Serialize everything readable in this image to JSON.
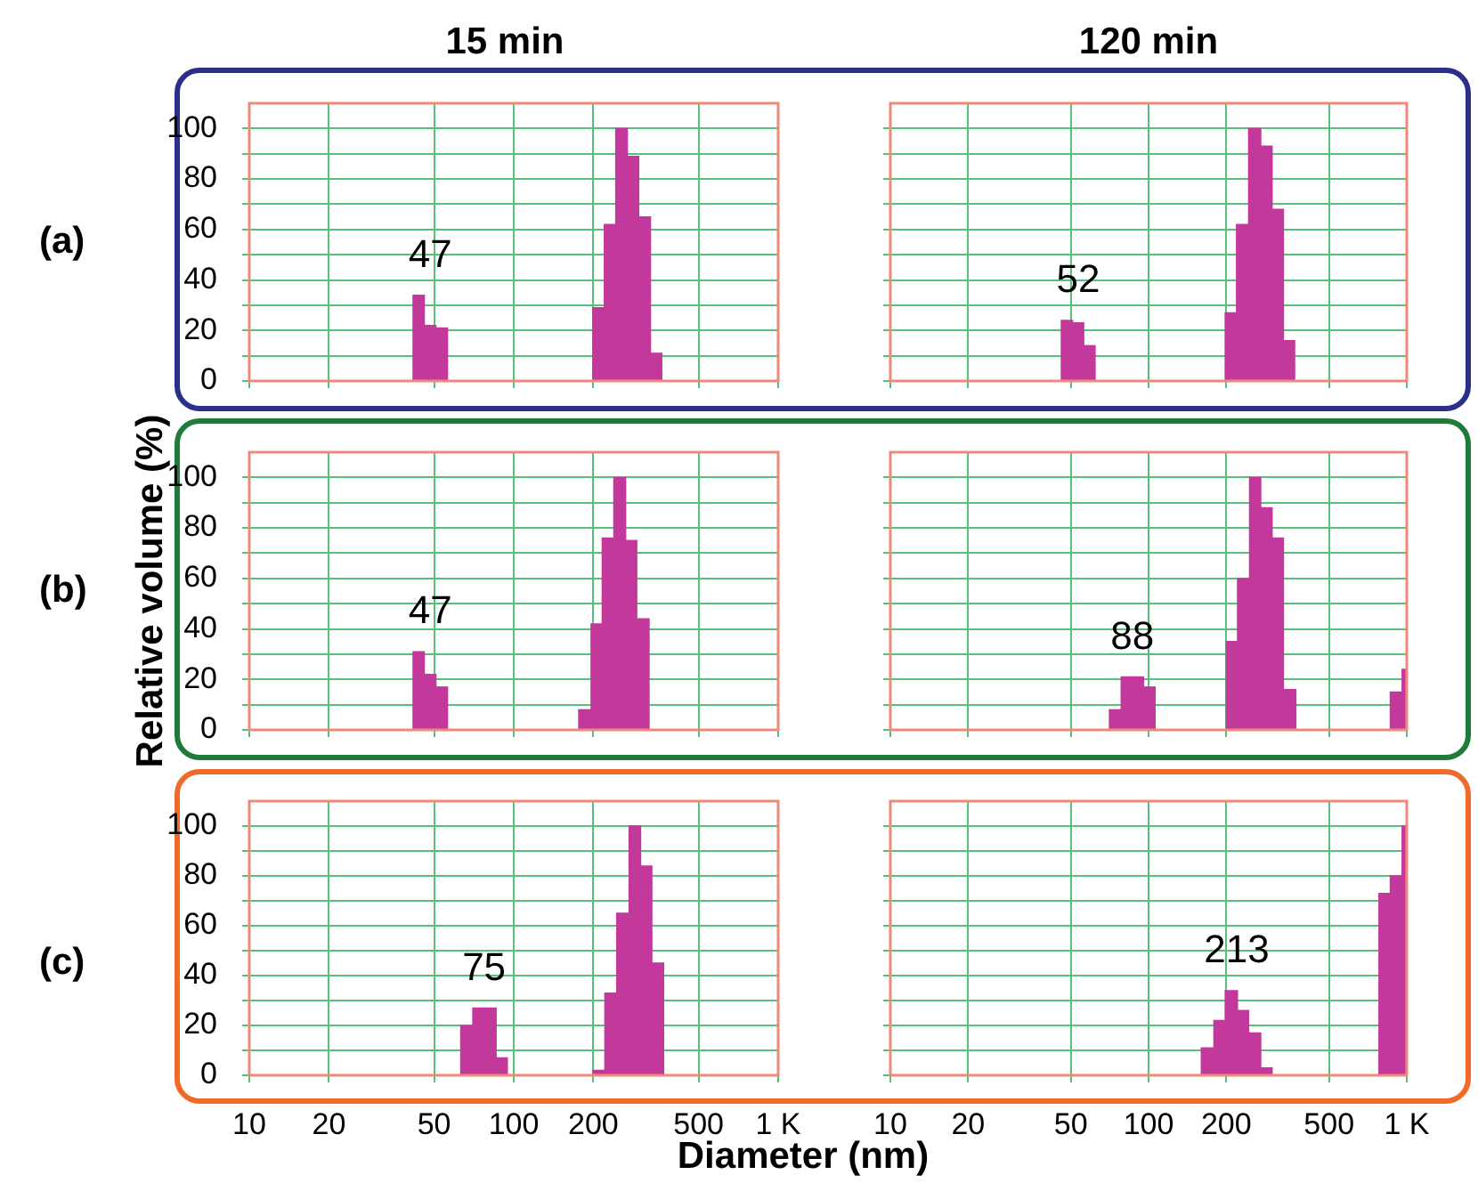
{
  "chart_data": [
    {
      "type": "histogram",
      "title": "15 min",
      "annotations": [
        "(a)",
        "47"
      ],
      "bins": [
        41.6,
        45.9,
        50.8,
        56.2,
        199,
        220,
        243,
        269,
        297,
        329,
        363
      ],
      "values": [
        34,
        22,
        21,
        null,
        29,
        62,
        100,
        89,
        65,
        11
      ],
      "color": "#c2399b",
      "xlim": [
        10,
        1000
      ],
      "xticks": [
        10,
        20,
        50,
        100,
        200,
        500,
        1000
      ],
      "ylim": [
        0,
        110
      ],
      "yticks": [
        0,
        {
          "value": 10,
          "label": null
        },
        20,
        {
          "value": 30,
          "label": null
        },
        40,
        {
          "value": 50,
          "label": null
        },
        60,
        {
          "value": 70,
          "label": null
        },
        80,
        {
          "value": 90,
          "label": null
        },
        100
      ],
      "log": "x",
      "grid": true,
      "tick_labels": "y"
    },
    {
      "type": "histogram",
      "title": "120 min",
      "annotations": [
        "52"
      ],
      "bins": [
        45.9,
        50.8,
        56.1,
        62.1,
        198,
        219,
        244,
        272,
        301,
        333,
        368
      ],
      "values": [
        24,
        23,
        14,
        null,
        27,
        62,
        100,
        93,
        68,
        16
      ],
      "color": "#c2399b",
      "xlim": [
        10,
        1000
      ],
      "xticks": [
        10,
        20,
        50,
        100,
        200,
        500,
        1000
      ],
      "ylim": [
        0,
        110
      ],
      "yticks": [
        0,
        {
          "value": 10,
          "label": null
        },
        20,
        {
          "value": 30,
          "label": null
        },
        40,
        {
          "value": 50,
          "label": null
        },
        60,
        {
          "value": 70,
          "label": null
        },
        80,
        {
          "value": 90,
          "label": null
        },
        100
      ],
      "log": "x",
      "grid": true,
      "tick_labels": false
    },
    {
      "type": "histogram",
      "ylabel": "Relative volume (%)",
      "annotations": [
        "(b)",
        "47"
      ],
      "bins": [
        41.6,
        45.9,
        50.8,
        56.2,
        176,
        196,
        216,
        239,
        265,
        292,
        325
      ],
      "values": [
        31,
        22,
        17,
        null,
        8,
        42,
        76,
        100,
        75,
        44
      ],
      "color": "#c2399b",
      "xlim": [
        10,
        1000
      ],
      "xticks": [
        10,
        20,
        50,
        100,
        200,
        500,
        1000
      ],
      "ylim": [
        0,
        110
      ],
      "yticks": [
        0,
        {
          "value": 10,
          "label": null
        },
        20,
        {
          "value": 30,
          "label": null
        },
        40,
        {
          "value": 50,
          "label": null
        },
        60,
        {
          "value": 70,
          "label": null
        },
        80,
        {
          "value": 90,
          "label": null
        },
        100
      ],
      "log": "x",
      "grid": true,
      "tick_labels": "y"
    },
    {
      "type": "histogram",
      "annotations": [
        "88"
      ],
      "bins": [
        70.5,
        78.3,
        86.6,
        95.7,
        106,
        200,
        221,
        246,
        272,
        301,
        333,
        372,
        863,
        959,
        1000
      ],
      "values": [
        8,
        21,
        21,
        17,
        null,
        35,
        60,
        100,
        88,
        76,
        16,
        null,
        15,
        24
      ],
      "color": "#c2399b",
      "xlim": [
        10,
        1000
      ],
      "xticks": [
        10,
        20,
        50,
        100,
        200,
        500,
        1000
      ],
      "ylim": [
        0,
        110
      ],
      "yticks": [
        0,
        {
          "value": 10,
          "label": null
        },
        20,
        {
          "value": 30,
          "label": null
        },
        40,
        {
          "value": 50,
          "label": null
        },
        60,
        {
          "value": 70,
          "label": null
        },
        80,
        {
          "value": 90,
          "label": null
        },
        100
      ],
      "log": "x",
      "grid": true,
      "tick_labels": false
    },
    {
      "type": "histogram",
      "xlabel": "Diameter (nm)",
      "annotations": [
        "(c)",
        "75"
      ],
      "bins": [
        63,
        70,
        77.4,
        85.8,
        94.6,
        199,
        221,
        245,
        273,
        302,
        333,
        369
      ],
      "values": [
        20,
        27,
        27,
        7,
        null,
        2,
        33,
        65,
        100,
        84,
        45
      ],
      "color": "#c2399b",
      "xlim": [
        10,
        1000
      ],
      "xticks": [
        10,
        20,
        50,
        100,
        200,
        500,
        {
          "value": 1000,
          "label": "1 K"
        }
      ],
      "ylim": [
        0,
        110
      ],
      "yticks": [
        0,
        {
          "value": 10,
          "label": null
        },
        20,
        {
          "value": 30,
          "label": null
        },
        40,
        {
          "value": 50,
          "label": null
        },
        60,
        {
          "value": 70,
          "label": null
        },
        80,
        {
          "value": 90,
          "label": null
        },
        100
      ],
      "log": "x",
      "grid": true
    },
    {
      "type": "histogram",
      "annotations": [
        "213"
      ],
      "bins": [
        160,
        179,
        198,
        221,
        244,
        272,
        301,
        780,
        863,
        959,
        1000
      ],
      "values": [
        11,
        22,
        34,
        26,
        17,
        3,
        null,
        73,
        80,
        100
      ],
      "color": "#c2399b",
      "xlim": [
        10,
        1000
      ],
      "xticks": [
        10,
        20,
        50,
        100,
        200,
        500,
        {
          "value": 1000,
          "label": "1 K"
        }
      ],
      "ylim": [
        0,
        110
      ],
      "yticks": [
        0,
        {
          "value": 10,
          "label": null
        },
        20,
        {
          "value": 30,
          "label": null
        },
        40,
        {
          "value": 50,
          "label": null
        },
        60,
        {
          "value": 70,
          "label": null
        },
        80,
        {
          "value": 90,
          "label": null
        },
        100
      ],
      "log": "x",
      "grid": true,
      "tick_labels": "x"
    }
  ]
}
